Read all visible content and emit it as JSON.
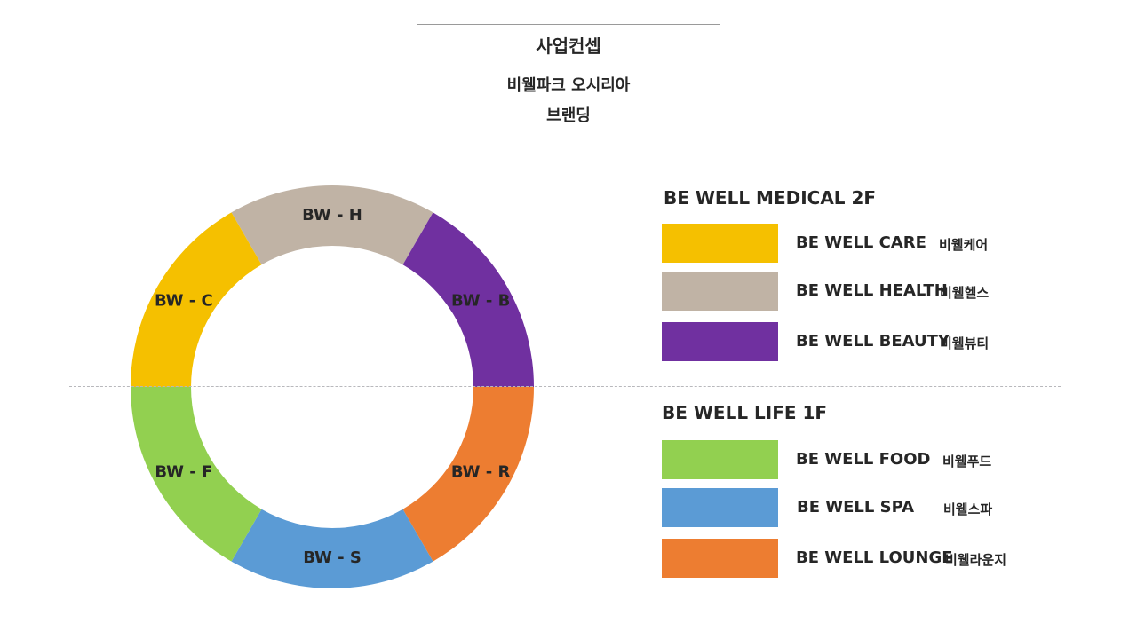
{
  "header": {
    "title": "사업컨셉",
    "subtitle_line1": "비웰파크 오시리아",
    "subtitle_line2": "브랜딩"
  },
  "ring": {
    "segments": [
      {
        "label": "BW - H",
        "color": "#c0b3a5"
      },
      {
        "label": "BW - B",
        "color": "#7030a0"
      },
      {
        "label": "BW - R",
        "color": "#ed7d31"
      },
      {
        "label": "BW - S",
        "color": "#5b9bd5"
      },
      {
        "label": "BW - F",
        "color": "#92d050"
      },
      {
        "label": "BW - C",
        "color": "#f5c000"
      }
    ]
  },
  "legend": {
    "groups": [
      {
        "title": "BE WELL MEDICAL  2F",
        "items": [
          {
            "name": "BE WELL CARE",
            "korean": "비웰케어",
            "color": "#f5c000"
          },
          {
            "name": "BE WELL HEALTH",
            "korean": "비웰헬스",
            "color": "#c0b3a5"
          },
          {
            "name": "BE WELL BEAUTY",
            "korean": "비웰뷰티",
            "color": "#7030a0"
          }
        ]
      },
      {
        "title": "BE WELL LIFE  1F",
        "items": [
          {
            "name": "BE WELL FOOD",
            "korean": "비웰푸드",
            "color": "#92d050"
          },
          {
            "name": "BE WELL SPA",
            "korean": "비웰스파",
            "color": "#5b9bd5"
          },
          {
            "name": "BE WELL LOUNGE",
            "korean": "비웰라운지",
            "color": "#ed7d31"
          }
        ]
      }
    ]
  }
}
